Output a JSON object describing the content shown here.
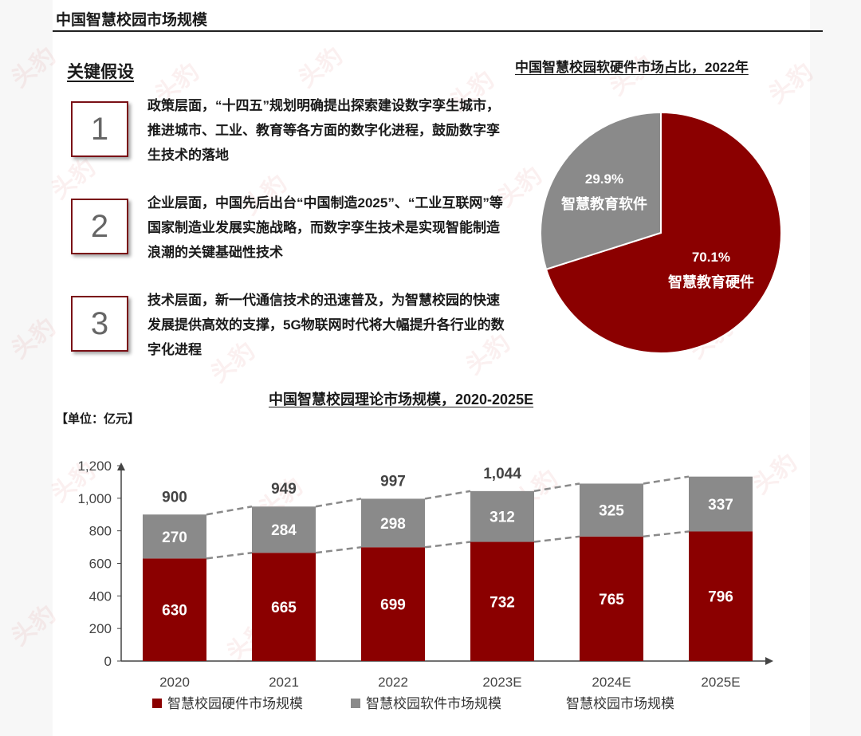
{
  "header": {
    "page_title": "中国智慧校园市场规模"
  },
  "assumptions": {
    "section_title": "关键假设",
    "items": [
      {
        "number": "1",
        "text": "政策层面，“十四五”规划明确提出探索建设数字孪生城市，推进城市、工业、教育等各方面的数字化进程，鼓励数字孪生技术的落地"
      },
      {
        "number": "2",
        "text": "企业层面，中国先后出台“中国制造2025”、“工业互联网”等国家制造业发展实施战略，而数字孪生技术是实现智能制造浪潮的关键基础性技术"
      },
      {
        "number": "3",
        "text": "技术层面，新一代通信技术的迅速普及，为智慧校园的快速发展提供高效的支撑，5G物联网时代将大幅提升各行业的数字化进程"
      }
    ]
  },
  "watermark": {
    "text": "头豹"
  },
  "colors": {
    "hardware": "#8b0000",
    "software": "#8a8a8a",
    "dashed": "#8a8a8a"
  },
  "chart_data": [
    {
      "type": "pie",
      "title": "中国智慧校园软硬件市场占比，2022年",
      "slices": [
        {
          "label": "智慧教育硬件",
          "value": 70.1,
          "value_label": "70.1%"
        },
        {
          "label": "智慧教育软件",
          "value": 29.9,
          "value_label": "29.9%"
        }
      ]
    },
    {
      "type": "bar",
      "stacked": true,
      "title": "中国智慧校园理论市场规模，2020-2025E",
      "unit_label": "【单位：亿元】",
      "categories": [
        "2020",
        "2021",
        "2022",
        "2023E",
        "2024E",
        "2025E"
      ],
      "series": [
        {
          "name": "智慧校园硬件市场规模",
          "values": [
            630,
            665,
            699,
            732,
            765,
            796
          ]
        },
        {
          "name": "智慧校园软件市场规模",
          "values": [
            270,
            284,
            298,
            312,
            325,
            337
          ]
        }
      ],
      "totals": [
        900,
        949,
        997,
        1044
      ],
      "total_labels": [
        "900",
        "949",
        "997",
        "1,044"
      ],
      "total_legend": "智慧校园市场规模",
      "ylim": [
        0,
        1200
      ],
      "yticks": [
        0,
        200,
        400,
        600,
        800,
        1000,
        1200
      ],
      "ytick_labels": [
        "0",
        "200",
        "400",
        "600",
        "800",
        "1,000",
        "1,200"
      ],
      "legend_position": "bottom"
    }
  ]
}
